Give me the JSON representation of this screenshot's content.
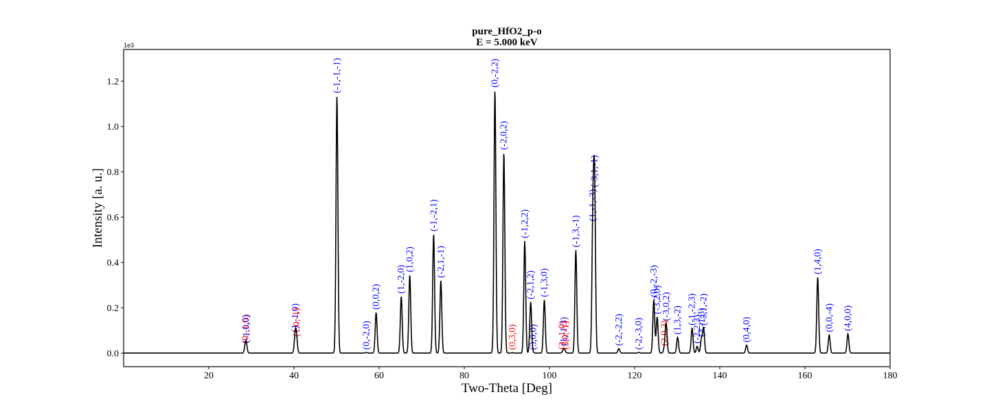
{
  "chart_data": {
    "type": "line",
    "title": "pure_HfO2_p-o",
    "subtitle": "E = 5.000 keV",
    "xlabel": "Two-Theta [Deg]",
    "ylabel": "Intensity [a. u.]",
    "y_multiplier": "1e3",
    "xlim": [
      0,
      180
    ],
    "ylim": [
      -0.06,
      1.34
    ],
    "xticks": [
      20,
      40,
      60,
      80,
      100,
      120,
      140,
      160,
      180
    ],
    "xtick_labels": [
      "20",
      "40",
      "60",
      "80",
      "100",
      "120",
      "140",
      "160",
      "180"
    ],
    "yticks": [
      0.0,
      0.2,
      0.4,
      0.6,
      0.8,
      1.0,
      1.2
    ],
    "ytick_labels": [
      "0.0",
      "0.2",
      "0.4",
      "0.6",
      "0.8",
      "1.0",
      "1.2"
    ],
    "grid": false,
    "legend": false,
    "colors": {
      "line": "#000000",
      "allowed": "#0000ff",
      "forbidden": "#ff0000"
    },
    "peaks": [
      {
        "x": 28.6,
        "y": 0.03,
        "label": "(0,-1,0)",
        "color": "forbidden"
      },
      {
        "x": 28.8,
        "y": 0.032,
        "label": "(-1,0,0)",
        "color": "allowed"
      },
      {
        "x": 40.3,
        "y": 0.08,
        "label": "(1,-1,0)",
        "color": "allowed"
      },
      {
        "x": 40.6,
        "y": 0.06,
        "label": "(1,0,-1)",
        "color": "forbidden"
      },
      {
        "x": 50.1,
        "y": 1.135,
        "label": "(-1,-1,-1)",
        "color": "allowed"
      },
      {
        "x": 57.0,
        "y": 0.003,
        "label": "(0,-2,0)",
        "color": "allowed"
      },
      {
        "x": 59.3,
        "y": 0.18,
        "label": "(0,0,2)",
        "color": "allowed"
      },
      {
        "x": 65.2,
        "y": 0.25,
        "label": "(1,-2,0)",
        "color": "allowed"
      },
      {
        "x": 67.2,
        "y": 0.345,
        "label": "(1,0,2)",
        "color": "allowed"
      },
      {
        "x": 72.8,
        "y": 0.525,
        "label": "(-1,-2,1)",
        "color": "allowed"
      },
      {
        "x": 74.5,
        "y": 0.32,
        "label": "(-2,1,-1)",
        "color": "allowed"
      },
      {
        "x": 87.2,
        "y": 1.16,
        "label": "(0,-2,2)",
        "color": "allowed"
      },
      {
        "x": 89.3,
        "y": 0.885,
        "label": "(-2,0,2)",
        "color": "allowed"
      },
      {
        "x": 91.3,
        "y": 0.002,
        "label": "(0,3,0)",
        "color": "forbidden"
      },
      {
        "x": 94.2,
        "y": 0.495,
        "label": "(-1,2,2)",
        "color": "allowed"
      },
      {
        "x": 95.6,
        "y": 0.225,
        "label": "(-2,1,2)",
        "color": "allowed"
      },
      {
        "x": 96.2,
        "y": 0.002,
        "label": "(3,0,0)",
        "color": "allowed"
      },
      {
        "x": 98.8,
        "y": 0.235,
        "label": "(-1,3,0)",
        "color": "allowed"
      },
      {
        "x": 103.0,
        "y": 0.003,
        "label": "(3,-1,0)",
        "color": "forbidden"
      },
      {
        "x": 103.4,
        "y": 0.02,
        "label": "(1,-1,3)",
        "color": "allowed"
      },
      {
        "x": 103.8,
        "y": 0.003,
        "label": "(3,0,-1)",
        "color": "forbidden"
      },
      {
        "x": 106.2,
        "y": 0.455,
        "label": "(-1,3,-1)",
        "color": "allowed"
      },
      {
        "x": 110.2,
        "y": 0.57,
        "label": "(1,-1,-3)",
        "color": "allowed"
      },
      {
        "x": 110.6,
        "y": 0.72,
        "label": "(-3,1,-1)",
        "color": "allowed"
      },
      {
        "x": 116.3,
        "y": 0.02,
        "label": "(-2,-2,2)",
        "color": "allowed"
      },
      {
        "x": 121.0,
        "y": 0.003,
        "label": "(-2,-3,0)",
        "color": "allowed"
      },
      {
        "x": 124.5,
        "y": 0.235,
        "label": "(0,-2,-3)",
        "color": "allowed"
      },
      {
        "x": 125.3,
        "y": 0.16,
        "label": "(-3,2,0)",
        "color": "allowed"
      },
      {
        "x": 127.0,
        "y": 0.02,
        "label": "(2,0,3)",
        "color": "forbidden"
      },
      {
        "x": 127.4,
        "y": 0.13,
        "label": "(-3,0,2)",
        "color": "allowed"
      },
      {
        "x": 130.1,
        "y": 0.07,
        "label": "(1,3,-2)",
        "color": "allowed"
      },
      {
        "x": 133.5,
        "y": 0.11,
        "label": "(-1,-2,3)",
        "color": "allowed"
      },
      {
        "x": 134.7,
        "y": 0.03,
        "label": "(-2,2,3)",
        "color": "allowed"
      },
      {
        "x": 135.7,
        "y": 0.06,
        "label": "(2,-1,3)",
        "color": "allowed"
      },
      {
        "x": 136.2,
        "y": 0.11,
        "label": "(-3,1,-2)",
        "color": "allowed"
      },
      {
        "x": 146.3,
        "y": 0.035,
        "label": "(0,4,0)",
        "color": "allowed"
      },
      {
        "x": 163.0,
        "y": 0.335,
        "label": "(1,4,0)",
        "color": "allowed"
      },
      {
        "x": 165.7,
        "y": 0.08,
        "label": "(0,0,-4)",
        "color": "allowed"
      },
      {
        "x": 170.1,
        "y": 0.085,
        "label": "(4,0,0)",
        "color": "allowed"
      }
    ]
  }
}
